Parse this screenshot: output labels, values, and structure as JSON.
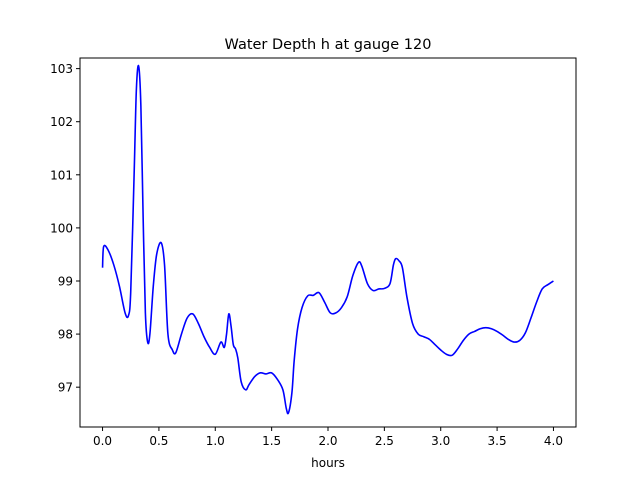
{
  "chart_data": {
    "type": "line",
    "title": "Water Depth h at gauge 120",
    "xlabel": "hours",
    "ylabel": "",
    "xlim": [
      -0.2,
      4.2
    ],
    "ylim": [
      96.25,
      103.2
    ],
    "x_ticks": [
      0.0,
      0.5,
      1.0,
      1.5,
      2.0,
      2.5,
      3.0,
      3.5,
      4.0
    ],
    "x_tick_labels": [
      "0.0",
      "0.5",
      "1.0",
      "1.5",
      "2.0",
      "2.5",
      "3.0",
      "3.5",
      "4.0"
    ],
    "y_ticks": [
      97,
      98,
      99,
      100,
      101,
      102,
      103
    ],
    "y_tick_labels": [
      "97",
      "98",
      "99",
      "100",
      "101",
      "102",
      "103"
    ],
    "grid": false,
    "series": [
      {
        "color": "#0000ff",
        "x": [
          0.0,
          0.01,
          0.05,
          0.1,
          0.15,
          0.2,
          0.23,
          0.25,
          0.28,
          0.3,
          0.32,
          0.34,
          0.36,
          0.38,
          0.4,
          0.42,
          0.45,
          0.48,
          0.52,
          0.55,
          0.58,
          0.62,
          0.65,
          0.7,
          0.75,
          0.8,
          0.85,
          0.9,
          0.95,
          1.0,
          1.05,
          1.08,
          1.1,
          1.12,
          1.14,
          1.16,
          1.18,
          1.2,
          1.23,
          1.27,
          1.3,
          1.35,
          1.4,
          1.45,
          1.5,
          1.55,
          1.6,
          1.63,
          1.65,
          1.68,
          1.7,
          1.73,
          1.77,
          1.82,
          1.87,
          1.92,
          1.97,
          2.02,
          2.07,
          2.12,
          2.17,
          2.22,
          2.27,
          2.3,
          2.35,
          2.4,
          2.45,
          2.5,
          2.55,
          2.58,
          2.6,
          2.63,
          2.66,
          2.7,
          2.75,
          2.8,
          2.85,
          2.9,
          2.95,
          3.0,
          3.05,
          3.1,
          3.15,
          3.2,
          3.25,
          3.3,
          3.35,
          3.4,
          3.45,
          3.5,
          3.55,
          3.6,
          3.65,
          3.7,
          3.75,
          3.8,
          3.85,
          3.9,
          3.95,
          4.0
        ],
        "y": [
          99.25,
          99.65,
          99.58,
          99.3,
          98.9,
          98.4,
          98.35,
          98.8,
          101.0,
          102.6,
          103.05,
          102.3,
          100.2,
          98.4,
          97.85,
          98.0,
          98.9,
          99.5,
          99.72,
          99.3,
          98.0,
          97.7,
          97.65,
          98.0,
          98.3,
          98.38,
          98.2,
          97.95,
          97.75,
          97.62,
          97.85,
          97.75,
          98.0,
          98.38,
          98.15,
          97.8,
          97.72,
          97.55,
          97.1,
          96.95,
          97.05,
          97.2,
          97.27,
          97.25,
          97.27,
          97.15,
          96.95,
          96.6,
          96.52,
          96.9,
          97.5,
          98.1,
          98.5,
          98.72,
          98.73,
          98.78,
          98.6,
          98.4,
          98.4,
          98.5,
          98.7,
          99.1,
          99.35,
          99.28,
          98.95,
          98.82,
          98.85,
          98.86,
          98.95,
          99.3,
          99.42,
          99.38,
          99.25,
          98.7,
          98.2,
          98.0,
          97.95,
          97.9,
          97.8,
          97.7,
          97.62,
          97.6,
          97.72,
          97.88,
          98.0,
          98.05,
          98.1,
          98.12,
          98.1,
          98.05,
          97.98,
          97.9,
          97.85,
          97.88,
          98.02,
          98.3,
          98.6,
          98.85,
          98.93,
          99.0
        ]
      }
    ]
  }
}
